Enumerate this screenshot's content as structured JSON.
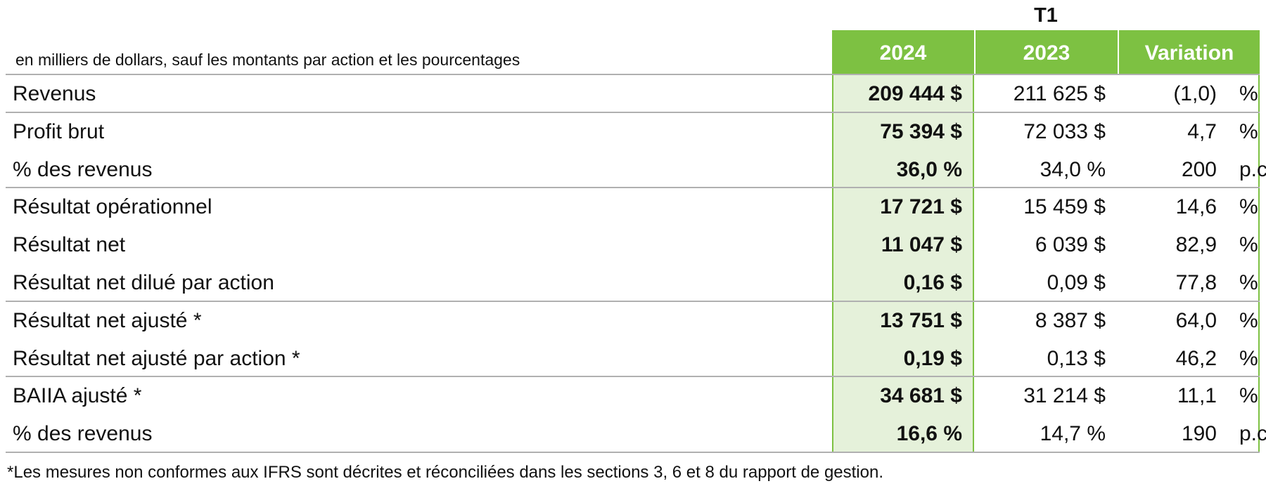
{
  "header": {
    "period": "T1",
    "note": "en milliers de dollars, sauf les montants par action et les pourcentages",
    "columns": [
      "2024",
      "2023",
      "Variation"
    ]
  },
  "table": {
    "rows": [
      [
        "Revenus",
        "209 444 $",
        "211 625 $",
        "(1,0)",
        "%"
      ],
      [
        "Profit brut",
        "75 394 $",
        "72 033 $",
        "4,7",
        "%"
      ],
      [
        "% des revenus",
        "36,0 %",
        "34,0 %",
        "200",
        "p.c"
      ],
      [
        "Résultat opérationnel",
        "17 721 $",
        "15 459 $",
        "14,6",
        "%"
      ],
      [
        "Résultat net",
        "11 047 $",
        "6 039 $",
        "82,9",
        "%"
      ],
      [
        "Résultat net dilué par action",
        "0,16 $",
        "0,09 $",
        "77,8",
        "%"
      ],
      [
        "Résultat net ajusté *",
        "13 751 $",
        "8 387 $",
        "64,0",
        "%"
      ],
      [
        "Résultat net ajusté par action *",
        "0,19 $",
        "0,13 $",
        "46,2",
        "%"
      ],
      [
        "BAIIA ajusté *",
        "34 681 $",
        "31 214 $",
        "11,1",
        "%"
      ],
      [
        "% des revenus",
        "16,6 %",
        "14,7 %",
        "190",
        "p.c"
      ]
    ]
  },
  "footnote": "*Les mesures non conformes aux IFRS sont décrites et réconciliées dans les sections 3, 6 et 8 du rapport de gestion."
}
